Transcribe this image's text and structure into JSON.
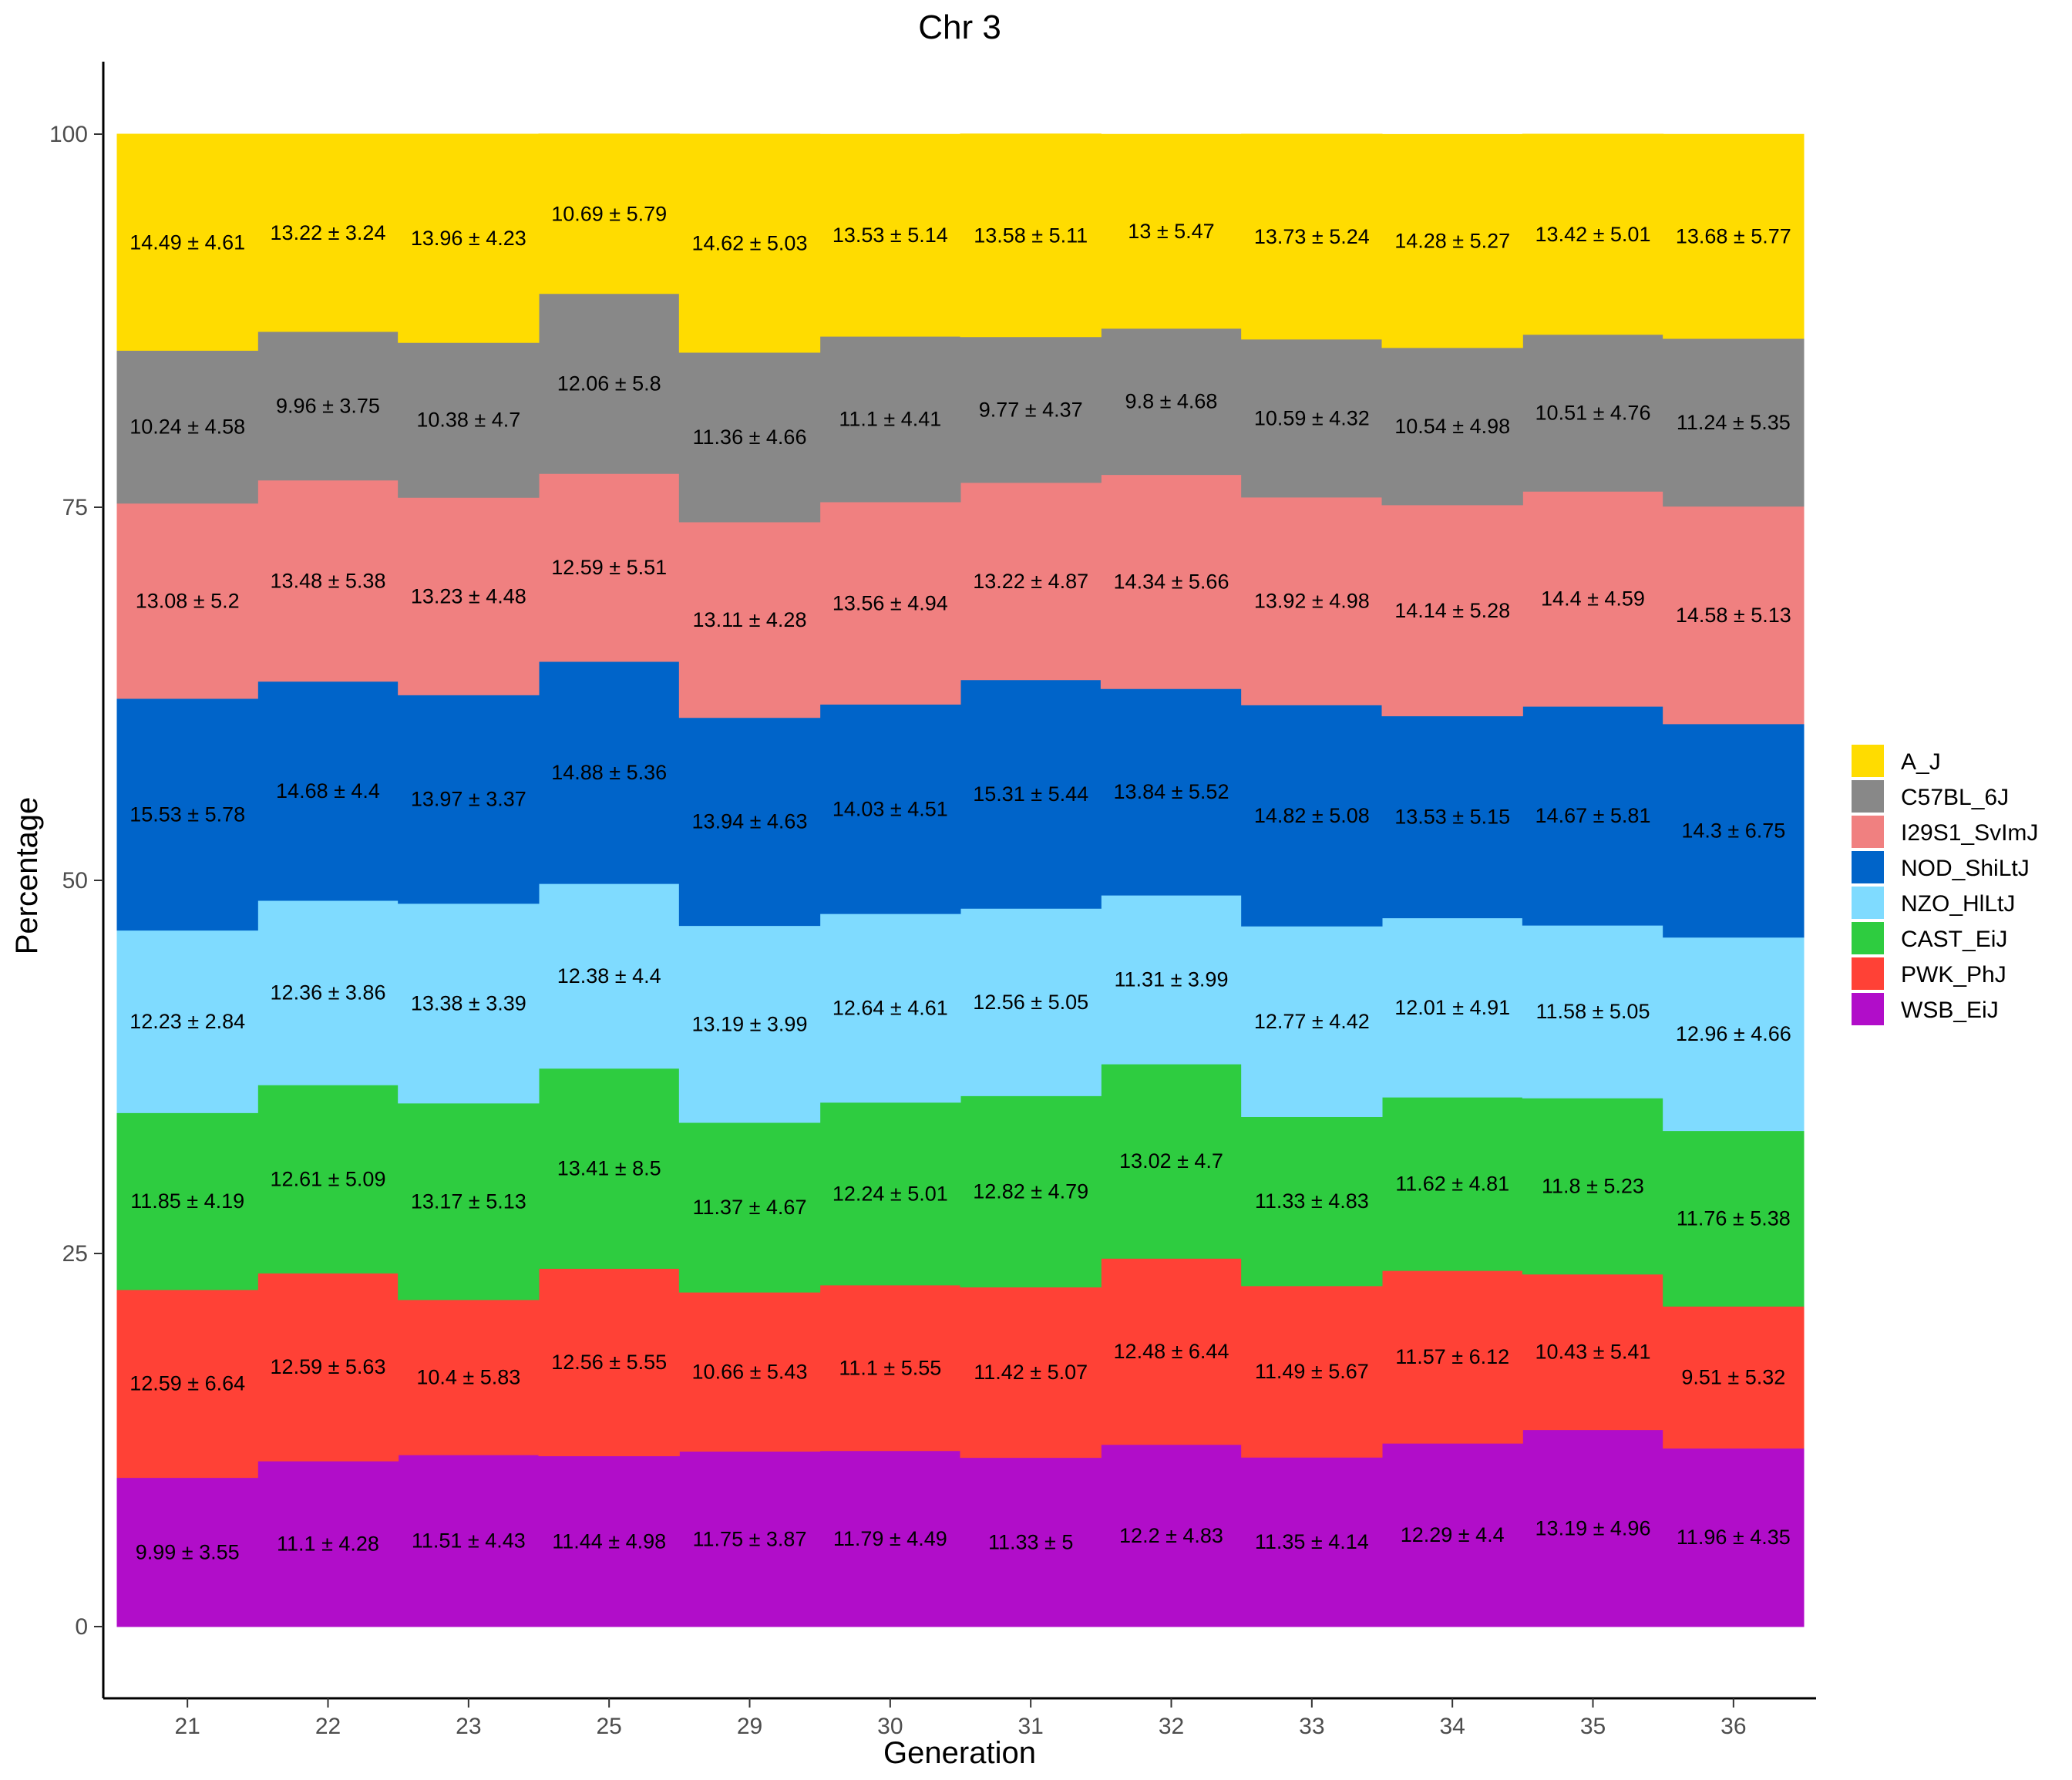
{
  "chart_data": {
    "type": "stacked-area",
    "title": "Chr 3",
    "xlabel": "Generation",
    "ylabel": "Percentage",
    "ylim": [
      -5,
      105
    ],
    "yticks": [
      0,
      25,
      50,
      75,
      100
    ],
    "categories": [
      "21",
      "22",
      "23",
      "25",
      "29",
      "30",
      "31",
      "32",
      "33",
      "34",
      "35",
      "36"
    ],
    "legend_position": "right",
    "series": [
      {
        "name": "WSB_EiJ",
        "color": "#B10DC9",
        "values": [
          9.99,
          11.1,
          11.51,
          11.44,
          11.75,
          11.79,
          11.33,
          12.2,
          11.35,
          12.29,
          13.19,
          11.96
        ],
        "labels": [
          "9.99 ± 3.55",
          "11.1 ± 4.28",
          "11.51 ± 4.43",
          "11.44 ± 4.98",
          "11.75 ± 3.87",
          "11.79 ± 4.49",
          "11.33 ± 5",
          "12.2 ± 4.83",
          "11.35 ± 4.14",
          "12.29 ± 4.4",
          "13.19 ± 4.96",
          "11.96 ± 4.35"
        ]
      },
      {
        "name": "PWK_PhJ",
        "color": "#FF4136",
        "values": [
          12.59,
          12.59,
          10.4,
          12.56,
          10.66,
          11.1,
          11.42,
          12.48,
          11.49,
          11.57,
          10.43,
          9.51
        ],
        "labels": [
          "12.59 ± 6.64",
          "12.59 ± 5.63",
          "10.4 ± 5.83",
          "12.56 ± 5.55",
          "10.66 ± 5.43",
          "11.1 ± 5.55",
          "11.42 ± 5.07",
          "12.48 ± 6.44",
          "11.49 ± 5.67",
          "11.57 ± 6.12",
          "10.43 ± 5.41",
          "9.51 ± 5.32"
        ]
      },
      {
        "name": "CAST_EiJ",
        "color": "#2ECC40",
        "values": [
          11.85,
          12.61,
          13.17,
          13.41,
          11.37,
          12.24,
          12.82,
          13.02,
          11.33,
          11.62,
          11.8,
          11.76
        ],
        "labels": [
          "11.85 ± 4.19",
          "12.61 ± 5.09",
          "13.17 ± 5.13",
          "13.41 ± 8.5",
          "11.37 ± 4.67",
          "12.24 ± 5.01",
          "12.82 ± 4.79",
          "13.02 ± 4.7",
          "11.33 ± 4.83",
          "11.62 ± 4.81",
          "11.8 ± 5.23",
          "11.76 ± 5.38"
        ]
      },
      {
        "name": "NZO_HlLtJ",
        "color": "#7FDBFF",
        "values": [
          12.23,
          12.36,
          13.38,
          12.38,
          13.19,
          12.64,
          12.56,
          11.31,
          12.77,
          12.01,
          11.58,
          12.96
        ],
        "labels": [
          "12.23 ± 2.84",
          "12.36 ± 3.86",
          "13.38 ± 3.39",
          "12.38 ± 4.4",
          "13.19 ± 3.99",
          "12.64 ± 4.61",
          "12.56 ± 5.05",
          "11.31 ± 3.99",
          "12.77 ± 4.42",
          "12.01 ± 4.91",
          "11.58 ± 5.05",
          "12.96 ± 4.66"
        ]
      },
      {
        "name": "NOD_ShiLtJ",
        "color": "#0064C9",
        "values": [
          15.53,
          14.68,
          13.97,
          14.88,
          13.94,
          14.03,
          15.31,
          13.84,
          14.82,
          13.53,
          14.67,
          14.3
        ],
        "labels": [
          "15.53 ± 5.78",
          "14.68 ± 4.4",
          "13.97 ± 3.37",
          "14.88 ± 5.36",
          "13.94 ± 4.63",
          "14.03 ± 4.51",
          "15.31 ± 5.44",
          "13.84 ± 5.52",
          "14.82 ± 5.08",
          "13.53 ± 5.15",
          "14.67 ± 5.81",
          "14.3 ± 6.75"
        ]
      },
      {
        "name": "I29S1_SvImJ",
        "color": "#F08080",
        "values": [
          13.08,
          13.48,
          13.23,
          12.59,
          13.11,
          13.56,
          13.22,
          14.34,
          13.92,
          14.14,
          14.4,
          14.58
        ],
        "labels": [
          "13.08 ± 5.2",
          "13.48 ± 5.38",
          "13.23 ± 4.48",
          "12.59 ± 5.51",
          "13.11 ± 4.28",
          "13.56 ± 4.94",
          "13.22 ± 4.87",
          "14.34 ± 5.66",
          "13.92 ± 4.98",
          "14.14 ± 5.28",
          "14.4 ± 4.59",
          "14.58 ± 5.13"
        ]
      },
      {
        "name": "C57BL_6J",
        "color": "#888888",
        "values": [
          10.24,
          9.96,
          10.38,
          12.06,
          11.36,
          11.1,
          9.77,
          9.8,
          10.59,
          10.54,
          10.51,
          11.24
        ],
        "labels": [
          "10.24 ± 4.58",
          "9.96 ± 3.75",
          "10.38 ± 4.7",
          "12.06 ± 5.8",
          "11.36 ± 4.66",
          "11.1 ± 4.41",
          "9.77 ± 4.37",
          "9.8 ± 4.68",
          "10.59 ± 4.32",
          "10.54 ± 4.98",
          "10.51 ± 4.76",
          "11.24 ± 5.35"
        ]
      },
      {
        "name": "A_J",
        "color": "#FFDC00",
        "values": [
          14.49,
          13.22,
          13.96,
          10.69,
          14.62,
          13.53,
          13.58,
          13.0,
          13.73,
          14.28,
          13.42,
          13.68
        ],
        "labels": [
          "14.49 ± 4.61",
          "13.22 ± 3.24",
          "13.96 ± 4.23",
          "10.69 ± 5.79",
          "14.62 ± 5.03",
          "13.53 ± 5.14",
          "13.58 ± 5.11",
          "13 ± 5.47",
          "13.73 ± 5.24",
          "14.28 ± 5.27",
          "13.42 ± 5.01",
          "13.68 ± 5.77"
        ]
      }
    ],
    "legend_order": [
      "A_J",
      "C57BL_6J",
      "I29S1_SvImJ",
      "NOD_ShiLtJ",
      "NZO_HlLtJ",
      "CAST_EiJ",
      "PWK_PhJ",
      "WSB_EiJ"
    ]
  }
}
